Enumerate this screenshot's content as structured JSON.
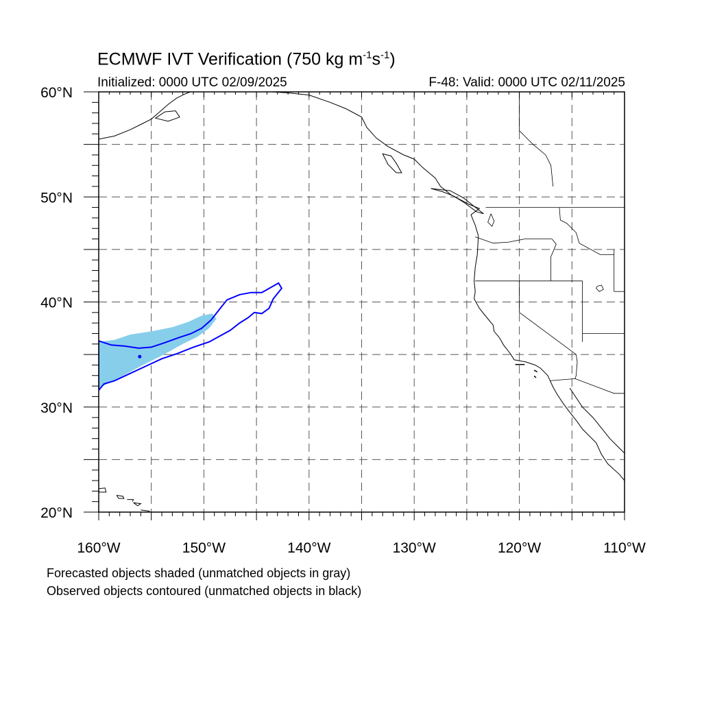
{
  "title": {
    "main": "ECMWF IVT Verification (750 kg m",
    "exp1": "-1",
    "mid": "s",
    "exp2": "-1",
    "end": ")"
  },
  "initialized": "Initialized: 0000 UTC 02/09/2025",
  "valid": "F-48: Valid: 0000 UTC 02/11/2025",
  "notes": {
    "forecast": "Forecasted objects shaded (unmatched objects in gray)",
    "observed": "Observed objects contoured (unmatched objects in black)"
  },
  "map": {
    "lon_range": [
      -160,
      -110
    ],
    "lat_range": [
      20,
      60
    ],
    "lon_ticks": [
      {
        "value": -160,
        "label": "160°W"
      },
      {
        "value": -150,
        "label": "150°W"
      },
      {
        "value": -140,
        "label": "140°W"
      },
      {
        "value": -130,
        "label": "130°W"
      },
      {
        "value": -120,
        "label": "120°W"
      },
      {
        "value": -110,
        "label": "110°W"
      }
    ],
    "lat_ticks": [
      {
        "value": 60,
        "label": "60°N"
      },
      {
        "value": 50,
        "label": "50°N"
      },
      {
        "value": 40,
        "label": "40°N"
      },
      {
        "value": 30,
        "label": "30°N"
      },
      {
        "value": 20,
        "label": "20°N"
      }
    ],
    "grid_lons": [
      -155,
      -150,
      -145,
      -140,
      -135,
      -130,
      -125,
      -120,
      -115
    ],
    "grid_lats": [
      55,
      50,
      45,
      40,
      35,
      30,
      25
    ],
    "colors": {
      "forecast_fill": "#87ceeb",
      "observed_contour": "#0000ff",
      "coastline": "#000000",
      "grid": "#555555"
    },
    "forecast_object": [
      [
        -160,
        36.2
      ],
      [
        -158.5,
        36.4
      ],
      [
        -157,
        36.9
      ],
      [
        -155,
        37.2
      ],
      [
        -153,
        37.6
      ],
      [
        -151.5,
        38.1
      ],
      [
        -150.2,
        38.7
      ],
      [
        -149.2,
        38.9
      ],
      [
        -148.8,
        38.4
      ],
      [
        -149.5,
        37.5
      ],
      [
        -150.6,
        36.7
      ],
      [
        -152,
        36
      ],
      [
        -154,
        34.9
      ],
      [
        -156,
        33.9
      ],
      [
        -158,
        32.8
      ],
      [
        -160,
        31.8
      ]
    ],
    "observed_object": [
      [
        -160,
        36.3
      ],
      [
        -158.8,
        35.9
      ],
      [
        -157.5,
        35.8
      ],
      [
        -156.2,
        35.6
      ],
      [
        -155,
        35.7
      ],
      [
        -153.8,
        36.1
      ],
      [
        -152.4,
        36.6
      ],
      [
        -151.2,
        37
      ],
      [
        -150.2,
        37.5
      ],
      [
        -149.3,
        38.3
      ],
      [
        -148.6,
        39.2
      ],
      [
        -147.8,
        40.2
      ],
      [
        -146.6,
        40.7
      ],
      [
        -145.5,
        40.9
      ],
      [
        -144.5,
        40.9
      ],
      [
        -143.6,
        41.4
      ],
      [
        -142.9,
        41.8
      ],
      [
        -142.6,
        41.3
      ],
      [
        -143.4,
        40.3
      ],
      [
        -143.8,
        39.4
      ],
      [
        -144.5,
        38.9
      ],
      [
        -145.2,
        39
      ],
      [
        -145.8,
        38.5
      ],
      [
        -146.6,
        38
      ],
      [
        -147.5,
        37.3
      ],
      [
        -148.4,
        36.8
      ],
      [
        -149.5,
        36.2
      ],
      [
        -151,
        35.7
      ],
      [
        -152.5,
        35.1
      ],
      [
        -154,
        34.6
      ],
      [
        -155.5,
        33.9
      ],
      [
        -157,
        33.2
      ],
      [
        -158.5,
        32.5
      ],
      [
        -159.5,
        32.2
      ],
      [
        -160,
        31.6
      ]
    ],
    "observed_dot": [
      -156.1,
      34.8
    ],
    "coastline": [
      [
        -143.5,
        60
      ],
      [
        -142,
        59.9
      ],
      [
        -140,
        59.7
      ],
      [
        -138,
        59
      ],
      [
        -136.5,
        58.4
      ],
      [
        -135,
        57.6
      ],
      [
        -134.5,
        56.6
      ],
      [
        -133.6,
        55.6
      ],
      [
        -132.5,
        54.8
      ],
      [
        -131,
        54
      ],
      [
        -130,
        53.6
      ],
      [
        -129.2,
        52.8
      ],
      [
        -128,
        51.8
      ],
      [
        -127.5,
        51
      ],
      [
        -126.5,
        50.2
      ],
      [
        -124.8,
        49.3
      ],
      [
        -123.8,
        48.9
      ],
      [
        -124.6,
        48.3
      ],
      [
        -124.2,
        47.3
      ],
      [
        -123.9,
        46.3
      ],
      [
        -124,
        44.5
      ],
      [
        -124.2,
        43.3
      ],
      [
        -124.3,
        42
      ],
      [
        -124.2,
        41
      ],
      [
        -124.3,
        40.3
      ],
      [
        -123.8,
        39.4
      ],
      [
        -123,
        38.4
      ],
      [
        -122.5,
        37.8
      ],
      [
        -122.4,
        37.2
      ],
      [
        -121.9,
        36.6
      ],
      [
        -121.5,
        35.9
      ],
      [
        -120.8,
        35
      ],
      [
        -120.5,
        34.5
      ],
      [
        -119.4,
        34.3
      ],
      [
        -118.5,
        34
      ],
      [
        -118,
        33.7
      ],
      [
        -117.3,
        33
      ],
      [
        -116.8,
        31.9
      ],
      [
        -116.4,
        31.2
      ],
      [
        -115.8,
        30.3
      ],
      [
        -115.2,
        29.5
      ],
      [
        -114.5,
        28.6
      ],
      [
        -114,
        27.9
      ],
      [
        -112.7,
        26.6
      ],
      [
        -112.2,
        25.5
      ],
      [
        -111.6,
        24.6
      ],
      [
        -110.5,
        23.6
      ],
      [
        -110,
        23
      ]
    ],
    "gulf_coast": [
      [
        -115.2,
        31.8
      ],
      [
        -114.6,
        30.9
      ],
      [
        -114,
        30
      ],
      [
        -113,
        29
      ],
      [
        -112.2,
        28
      ],
      [
        -111.4,
        27
      ],
      [
        -110.6,
        26.2
      ],
      [
        -110,
        25.6
      ]
    ],
    "vancouver_island": [
      [
        -128.4,
        50.8
      ],
      [
        -127.3,
        50.5
      ],
      [
        -126.3,
        50.1
      ],
      [
        -125.3,
        49.5
      ],
      [
        -124.1,
        48.6
      ],
      [
        -123.4,
        48.4
      ],
      [
        -124.3,
        49.1
      ],
      [
        -125.3,
        49.9
      ],
      [
        -126.6,
        50.6
      ],
      [
        -128.4,
        50.8
      ]
    ],
    "haida_gwaii": [
      [
        -133,
        54.1
      ],
      [
        -132.2,
        53.9
      ],
      [
        -131.7,
        53.2
      ],
      [
        -131.2,
        52.3
      ],
      [
        -131.7,
        52.3
      ],
      [
        -132.5,
        53.1
      ],
      [
        -133,
        54.1
      ]
    ],
    "alaska_coast": [
      [
        -160,
        55.5
      ],
      [
        -158.5,
        55.8
      ],
      [
        -157,
        56.4
      ],
      [
        -156,
        56.9
      ],
      [
        -155,
        57.4
      ],
      [
        -154.2,
        58.1
      ],
      [
        -153.4,
        58.8
      ],
      [
        -152.6,
        59.4
      ],
      [
        -151.8,
        59.8
      ],
      [
        -151.3,
        60
      ]
    ],
    "kodiak": [
      [
        -154.6,
        57.5
      ],
      [
        -153.4,
        57.2
      ],
      [
        -152.3,
        57.6
      ],
      [
        -152.7,
        58.2
      ],
      [
        -153.7,
        58.1
      ],
      [
        -154.6,
        57.5
      ]
    ],
    "hawaii_islands": [
      [
        [
          -160.2,
          22.2
        ],
        [
          -159.4,
          22.3
        ],
        [
          -159.3,
          21.9
        ],
        [
          -159.9,
          21.9
        ],
        [
          -160.2,
          22.2
        ]
      ],
      [
        [
          -158.3,
          21.6
        ],
        [
          -157.7,
          21.5
        ],
        [
          -157.6,
          21.3
        ],
        [
          -158.1,
          21.3
        ],
        [
          -158.3,
          21.6
        ]
      ],
      [
        [
          -157.3,
          21.2
        ],
        [
          -156.7,
          21.2
        ],
        [
          -156.8,
          21
        ]
      ],
      [
        [
          -156.7,
          20.9
        ],
        [
          -156,
          20.8
        ],
        [
          -156.3,
          20.6
        ],
        [
          -156.7,
          20.9
        ]
      ],
      [
        [
          -156,
          20.2
        ],
        [
          -155.2,
          20.1
        ],
        [
          -154.8,
          19.5
        ],
        [
          -155.5,
          19.5
        ]
      ]
    ],
    "channel_islands": [
      [
        [
          -120.4,
          34.05
        ],
        [
          -119.5,
          34.05
        ]
      ],
      [
        [
          -118.6,
          33.5
        ],
        [
          -118.3,
          33.35
        ]
      ],
      [
        [
          -118.6,
          32.95
        ],
        [
          -118.4,
          32.8
        ]
      ]
    ],
    "borders": [
      [
        [
          -123.2,
          49
        ],
        [
          -110,
          49
        ]
      ],
      [
        [
          -124.2,
          46.2
        ],
        [
          -122.5,
          45.6
        ],
        [
          -121,
          45.7
        ],
        [
          -119.5,
          46
        ],
        [
          -116.9,
          46
        ]
      ],
      [
        [
          -116.9,
          46
        ],
        [
          -116.5,
          45.5
        ],
        [
          -117,
          44.3
        ],
        [
          -117,
          42
        ]
      ],
      [
        [
          -124.2,
          42
        ],
        [
          -114,
          42
        ]
      ],
      [
        [
          -120,
          42
        ],
        [
          -120,
          39
        ],
        [
          -114.6,
          35
        ],
        [
          -114.5,
          34.3
        ],
        [
          -114.6,
          33
        ],
        [
          -114.7,
          32.7
        ]
      ],
      [
        [
          -114,
          42
        ],
        [
          -114,
          36.2
        ]
      ],
      [
        [
          -114,
          37
        ],
        [
          -110,
          37
        ]
      ],
      [
        [
          -117.1,
          32.5
        ],
        [
          -114.7,
          32.7
        ],
        [
          -111,
          31.3
        ],
        [
          -110,
          31.3
        ]
      ],
      [
        [
          -116.2,
          49
        ],
        [
          -116.1,
          47.8
        ],
        [
          -115.5,
          47.5
        ],
        [
          -114.6,
          46.6
        ],
        [
          -114.3,
          45.6
        ],
        [
          -112.3,
          44.5
        ],
        [
          -111,
          44.5
        ]
      ],
      [
        [
          -111,
          45
        ],
        [
          -111,
          41
        ]
      ],
      [
        [
          -111,
          41
        ],
        [
          -110,
          41
        ]
      ],
      [
        [
          -116.8,
          51
        ],
        [
          -117,
          53
        ],
        [
          -117.5,
          54
        ],
        [
          -118.7,
          55
        ],
        [
          -120,
          56.3
        ]
      ],
      [
        [
          -120,
          60
        ],
        [
          -120,
          56.3
        ]
      ]
    ],
    "lakes": [
      [
        [
          -112.6,
          41.5
        ],
        [
          -112.2,
          41.6
        ],
        [
          -112,
          41.2
        ],
        [
          -112.4,
          41
        ],
        [
          -112.7,
          41.3
        ],
        [
          -112.6,
          41.5
        ]
      ],
      [
        [
          -122.7,
          48.4
        ],
        [
          -122.4,
          47.7
        ],
        [
          -122.6,
          47.2
        ],
        [
          -123,
          47.6
        ],
        [
          -122.7,
          48.4
        ]
      ]
    ]
  }
}
